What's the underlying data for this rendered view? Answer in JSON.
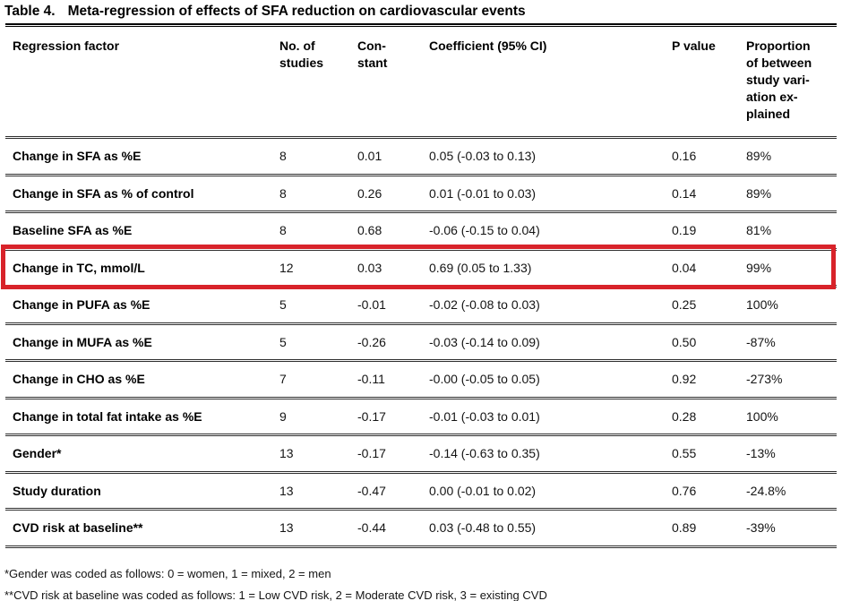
{
  "title": {
    "label": "Table 4.",
    "text": "Meta-regression of effects of SFA reduction on cardiovascular events"
  },
  "table": {
    "columns": [
      "Regression factor",
      "No. of\nstudies",
      "Con-\nstant",
      "Coefficient (95% CI)",
      "P value",
      "Proportion\nof between\nstudy vari-\nation ex-\nplained"
    ],
    "rows": [
      {
        "factor": "Change in SFA as %E",
        "studies": "8",
        "constant": "0.01",
        "coefficient": "0.05 (-0.03 to 0.13)",
        "p_value": "0.16",
        "proportion": "89%",
        "highlighted": false
      },
      {
        "factor": "Change in SFA as % of control",
        "studies": "8",
        "constant": "0.26",
        "coefficient": "0.01 (-0.01 to 0.03)",
        "p_value": "0.14",
        "proportion": "89%",
        "highlighted": false
      },
      {
        "factor": "Baseline SFA as %E",
        "studies": "8",
        "constant": "0.68",
        "coefficient": "-0.06 (-0.15 to 0.04)",
        "p_value": "0.19",
        "proportion": "81%",
        "highlighted": false
      },
      {
        "factor": "Change in TC, mmol/L",
        "studies": "12",
        "constant": "0.03",
        "coefficient": "0.69 (0.05 to 1.33)",
        "p_value": "0.04",
        "proportion": "99%",
        "highlighted": true
      },
      {
        "factor": "Change in PUFA as %E",
        "studies": "5",
        "constant": "-0.01",
        "coefficient": "-0.02 (-0.08 to 0.03)",
        "p_value": "0.25",
        "proportion": "100%",
        "highlighted": false
      },
      {
        "factor": "Change in MUFA as %E",
        "studies": "5",
        "constant": "-0.26",
        "coefficient": "-0.03 (-0.14 to 0.09)",
        "p_value": "0.50",
        "proportion": "-87%",
        "highlighted": false
      },
      {
        "factor": "Change in CHO as %E",
        "studies": "7",
        "constant": "-0.11",
        "coefficient": "-0.00 (-0.05 to 0.05)",
        "p_value": "0.92",
        "proportion": "-273%",
        "highlighted": false
      },
      {
        "factor": "Change in total fat intake as %E",
        "studies": "9",
        "constant": "-0.17",
        "coefficient": "-0.01 (-0.03 to 0.01)",
        "p_value": "0.28",
        "proportion": "100%",
        "highlighted": false
      },
      {
        "factor": "Gender*",
        "studies": "13",
        "constant": "-0.17",
        "coefficient": "-0.14 (-0.63 to 0.35)",
        "p_value": "0.55",
        "proportion": "-13%",
        "highlighted": false
      },
      {
        "factor": "Study duration",
        "studies": "13",
        "constant": "-0.47",
        "coefficient": "0.00 (-0.01 to 0.02)",
        "p_value": "0.76",
        "proportion": "-24.8%",
        "highlighted": false
      },
      {
        "factor": "CVD risk at baseline**",
        "studies": "13",
        "constant": "-0.44",
        "coefficient": "0.03 (-0.48 to 0.55)",
        "p_value": "0.89",
        "proportion": "-39%",
        "highlighted": false
      }
    ]
  },
  "highlight": {
    "color": "#d8232a"
  },
  "footnotes": [
    "*Gender was coded as follows: 0 = women, 1 = mixed, 2 = men",
    "**CVD risk at baseline was coded as follows: 1 = Low CVD risk, 2 = Moderate CVD risk, 3 = existing CVD"
  ]
}
